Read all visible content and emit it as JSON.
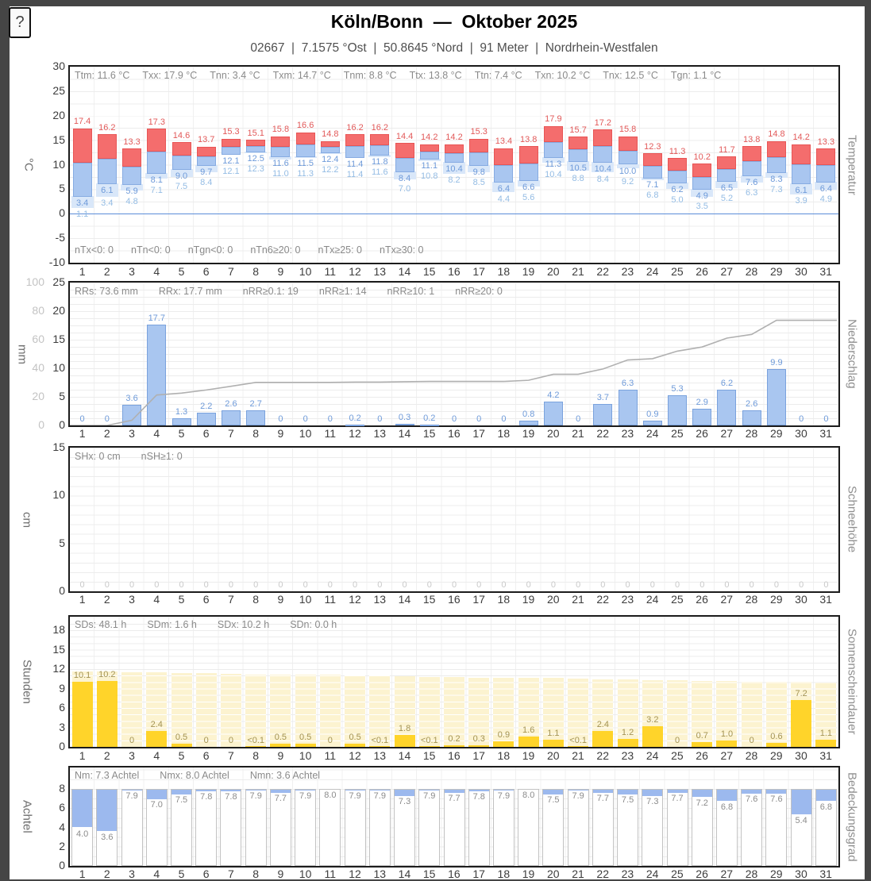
{
  "window": {
    "help_button": "?"
  },
  "header": {
    "title": "Köln/Bonn  —  Oktober 2025",
    "subtitle": "02667  |  7.1575 °Ost  |  50.8645 °Nord  |  91 Meter  |  Nordrhein-Westfalen",
    "station_id": "02667",
    "longitude": "7.1575 °Ost",
    "latitude": "50.8645 °Nord",
    "elevation": "91 Meter",
    "state": "Nordrhein-Westfalen"
  },
  "days": [
    1,
    2,
    3,
    4,
    5,
    6,
    7,
    8,
    9,
    10,
    11,
    12,
    13,
    14,
    15,
    16,
    17,
    18,
    19,
    20,
    21,
    22,
    23,
    24,
    25,
    26,
    27,
    28,
    29,
    30,
    31
  ],
  "colors": {
    "temp_max_bar": "#f46d6d",
    "temp_max_border": "#e85555",
    "temp_max_label": "#e25959",
    "temp_min_bar": "#a9c6f0",
    "temp_min_border": "#86abe2",
    "temp_min_label": "#6e9ad9",
    "temp_ground_bar": "#d9e7f9",
    "temp_ground_label": "#94bce4",
    "zero_line": "#5b8dd9",
    "precip_bar": "#a9c6f0",
    "precip_border": "#7aa2dd",
    "precip_label": "#6e9ad9",
    "cumulative_line": "#b0b0b0",
    "snow_zero_label": "#c9c9c9",
    "sun_bar": "#ffd42a",
    "sun_daylength_bar": "#fcf3d0",
    "sun_label": "#a39353",
    "cloud_bar": "#9cb9ee",
    "cloud_outline": "#c2c2c2",
    "cloud_label": "#8b8b8b",
    "grid": "#ececec",
    "panel_border": "#1c1c1c"
  },
  "chart_data": [
    {
      "id": "temperature",
      "type": "bar",
      "title": "Temperatur",
      "ylabel_left": "°C",
      "ylabel_right": "Temperatur",
      "ylim": [
        -10,
        30
      ],
      "yticks": [
        -10,
        -5,
        0,
        5,
        10,
        15,
        20,
        25,
        30
      ],
      "zero_line": true,
      "stats_top": [
        "Ttm: 11.6 °C",
        "Txx: 17.9 °C",
        "Tnn: 3.4 °C",
        "Txm: 14.7 °C",
        "Tnm: 8.8 °C",
        "Ttx: 13.8 °C",
        "Ttn: 7.4 °C",
        "Txn: 10.2 °C",
        "Tnx: 12.5 °C",
        "Tgn: 1.1 °C"
      ],
      "stats_bottom": [
        "nTx<0: 0",
        "nTn<0: 0",
        "nTgn<0: 0",
        "nTn6≥20: 0",
        "nTx≥25: 0",
        "nTx≥30: 0"
      ],
      "series": [
        {
          "name": "Tagesmaximum (Tx)",
          "values": [
            17.4,
            16.2,
            13.3,
            17.3,
            14.6,
            13.7,
            15.3,
            15.1,
            15.8,
            16.6,
            14.8,
            16.2,
            16.2,
            14.4,
            14.2,
            14.2,
            15.3,
            13.4,
            13.8,
            17.9,
            15.7,
            17.2,
            15.8,
            12.3,
            11.3,
            10.2,
            11.7,
            13.8,
            14.8,
            14.2,
            13.3
          ]
        },
        {
          "name": "Tagesminimum (Tn)",
          "values": [
            3.4,
            6.1,
            5.9,
            8.1,
            9.0,
            9.7,
            12.1,
            12.5,
            11.6,
            11.5,
            12.4,
            11.4,
            11.8,
            8.4,
            11.1,
            10.4,
            9.8,
            6.4,
            6.6,
            11.3,
            10.5,
            10.4,
            10.0,
            7.1,
            6.2,
            4.9,
            6.5,
            7.6,
            8.3,
            6.1,
            6.4
          ]
        },
        {
          "name": "Erdbodenminimum (Tg)",
          "values": [
            1.1,
            3.4,
            4.8,
            7.1,
            7.5,
            8.4,
            12.1,
            12.3,
            11.0,
            11.3,
            12.2,
            11.4,
            11.6,
            7.0,
            10.8,
            8.2,
            8.5,
            4.4,
            5.6,
            10.4,
            8.8,
            8.4,
            9.2,
            6.8,
            5.0,
            3.5,
            5.2,
            6.3,
            7.3,
            3.9,
            4.9
          ]
        }
      ]
    },
    {
      "id": "precipitation",
      "type": "bar",
      "title": "Niederschlag",
      "ylabel_left": "mm",
      "ylabel_right": "Niederschlag",
      "ylim": [
        0,
        25
      ],
      "ylim_outer": [
        0,
        100
      ],
      "yticks": [
        0,
        5,
        10,
        15,
        20,
        25
      ],
      "yticks_outer": [
        0,
        20,
        40,
        60,
        80,
        100
      ],
      "stats_top": [
        "RRs: 73.6 mm",
        "RRx: 17.7 mm",
        "nRR≥0.1: 19",
        "nRR≥1: 14",
        "nRR≥10: 1",
        "nRR≥20: 0"
      ],
      "values": [
        0,
        0,
        3.6,
        17.7,
        1.3,
        2.2,
        2.6,
        2.7,
        0,
        0,
        0,
        0.2,
        0,
        0.3,
        0.2,
        0,
        0,
        0,
        0.8,
        4.2,
        0,
        3.7,
        6.3,
        0.9,
        5.3,
        2.9,
        6.2,
        2.6,
        9.9,
        0,
        0
      ],
      "cumulative": [
        0,
        0,
        3.6,
        21.3,
        22.6,
        24.8,
        27.4,
        30.1,
        30.1,
        30.1,
        30.1,
        30.3,
        30.3,
        30.6,
        30.8,
        30.8,
        30.8,
        30.8,
        31.6,
        35.8,
        35.8,
        39.5,
        45.8,
        46.7,
        52.0,
        54.9,
        61.1,
        63.7,
        73.6,
        73.6,
        73.6
      ]
    },
    {
      "id": "snow_depth",
      "type": "bar",
      "title": "Schneehöhe",
      "ylabel_left": "cm",
      "ylabel_right": "Schneehöhe",
      "ylim": [
        0,
        15
      ],
      "yticks": [
        0,
        5,
        10,
        15
      ],
      "stats_top": [
        "SHx: 0 cm",
        "nSH≥1: 0"
      ],
      "values": [
        0,
        0,
        0,
        0,
        0,
        0,
        0,
        0,
        0,
        0,
        0,
        0,
        0,
        0,
        0,
        0,
        0,
        0,
        0,
        0,
        0,
        0,
        0,
        0,
        0,
        0,
        0,
        0,
        0,
        0,
        0
      ]
    },
    {
      "id": "sunshine",
      "type": "bar",
      "title": "Sonnenscheindauer",
      "ylabel_left": "Stunden",
      "ylabel_right": "Sonnenscheindauer",
      "ylim": [
        0,
        18
      ],
      "yticks": [
        0,
        3,
        6,
        9,
        12,
        15,
        18
      ],
      "stats_top": [
        "SDs: 48.1 h",
        "SDm: 1.6 h",
        "SDx: 10.2 h",
        "SDn: 0.0 h"
      ],
      "labels": [
        "10.1",
        "10.2",
        "0",
        "2.4",
        "0.5",
        "0",
        "0",
        "<0.1",
        "0.5",
        "0.5",
        "0",
        "0.5",
        "<0.1",
        "1.8",
        "<0.1",
        "0.2",
        "0.3",
        "0.9",
        "1.6",
        "1.1",
        "<0.1",
        "2.4",
        "1.2",
        "3.2",
        "0",
        "0.7",
        "1.0",
        "0",
        "0.6",
        "7.2",
        "1.1"
      ],
      "values": [
        10.1,
        10.2,
        0,
        2.4,
        0.5,
        0,
        0,
        0.05,
        0.5,
        0.5,
        0,
        0.5,
        0.05,
        1.8,
        0.05,
        0.2,
        0.3,
        0.9,
        1.6,
        1.1,
        0.05,
        2.4,
        1.2,
        3.2,
        0,
        0.7,
        1.0,
        0,
        0.6,
        7.2,
        1.1
      ],
      "daylength_estimate": [
        11.6,
        11.6,
        11.5,
        11.5,
        11.4,
        11.4,
        11.3,
        11.2,
        11.2,
        11.1,
        11.1,
        11.0,
        11.0,
        10.9,
        10.8,
        10.8,
        10.7,
        10.7,
        10.6,
        10.6,
        10.5,
        10.4,
        10.4,
        10.3,
        10.3,
        10.2,
        10.2,
        10.1,
        10.0,
        10.0,
        9.9
      ]
    },
    {
      "id": "cloud_cover",
      "type": "bar",
      "title": "Bedeckungsgrad",
      "ylabel_left": "Achtel",
      "ylabel_right": "Bedeckungsgrad",
      "ylim": [
        0,
        8
      ],
      "yticks": [
        0,
        2,
        4,
        6,
        8
      ],
      "stats_top": [
        "Nm: 7.3 Achtel",
        "Nmx: 8.0 Achtel",
        "Nmn: 3.6 Achtel"
      ],
      "values": [
        4.0,
        3.6,
        7.9,
        7.0,
        7.5,
        7.8,
        7.8,
        7.9,
        7.7,
        7.9,
        8.0,
        7.9,
        7.9,
        7.3,
        7.9,
        7.7,
        7.8,
        7.9,
        8.0,
        7.5,
        7.9,
        7.7,
        7.5,
        7.3,
        7.7,
        7.2,
        6.8,
        7.6,
        7.6,
        5.4,
        6.8
      ]
    }
  ]
}
